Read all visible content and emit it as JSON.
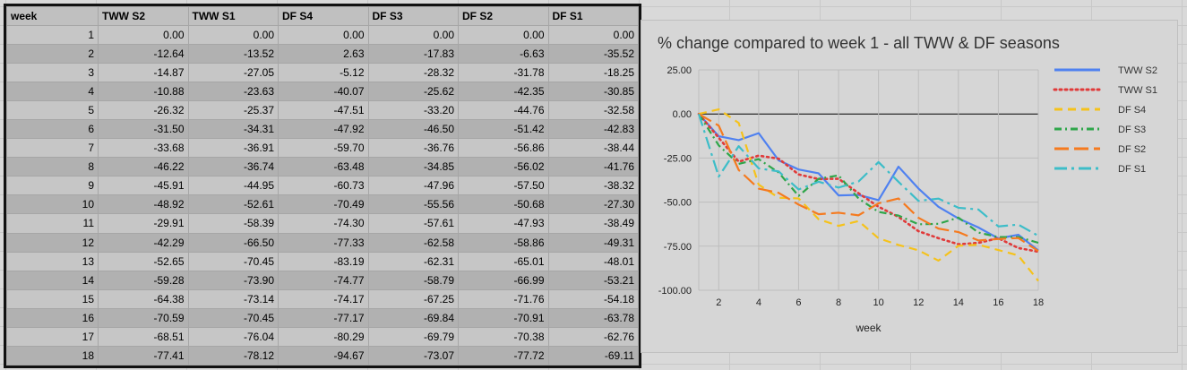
{
  "table": {
    "headers": [
      "week",
      "TWW S2",
      "TWW S1",
      "DF S4",
      "DF S3",
      "DF S2",
      "DF S1"
    ],
    "rows": [
      [
        "1",
        "0.00",
        "0.00",
        "0.00",
        "0.00",
        "0.00",
        "0.00"
      ],
      [
        "2",
        "-12.64",
        "-13.52",
        "2.63",
        "-17.83",
        "-6.63",
        "-35.52"
      ],
      [
        "3",
        "-14.87",
        "-27.05",
        "-5.12",
        "-28.32",
        "-31.78",
        "-18.25"
      ],
      [
        "4",
        "-10.88",
        "-23.63",
        "-40.07",
        "-25.62",
        "-42.35",
        "-30.85"
      ],
      [
        "5",
        "-26.32",
        "-25.37",
        "-47.51",
        "-33.20",
        "-44.76",
        "-32.58"
      ],
      [
        "6",
        "-31.50",
        "-34.31",
        "-47.92",
        "-46.50",
        "-51.42",
        "-42.83"
      ],
      [
        "7",
        "-33.68",
        "-36.91",
        "-59.70",
        "-36.76",
        "-56.86",
        "-38.44"
      ],
      [
        "8",
        "-46.22",
        "-36.74",
        "-63.48",
        "-34.85",
        "-56.02",
        "-41.76"
      ],
      [
        "9",
        "-45.91",
        "-44.95",
        "-60.73",
        "-47.96",
        "-57.50",
        "-38.32"
      ],
      [
        "10",
        "-48.92",
        "-52.61",
        "-70.49",
        "-55.56",
        "-50.68",
        "-27.30"
      ],
      [
        "11",
        "-29.91",
        "-58.39",
        "-74.30",
        "-57.61",
        "-47.93",
        "-38.49"
      ],
      [
        "12",
        "-42.29",
        "-66.50",
        "-77.33",
        "-62.58",
        "-58.86",
        "-49.31"
      ],
      [
        "13",
        "-52.65",
        "-70.45",
        "-83.19",
        "-62.31",
        "-65.01",
        "-48.01"
      ],
      [
        "14",
        "-59.28",
        "-73.90",
        "-74.77",
        "-58.79",
        "-66.99",
        "-53.21"
      ],
      [
        "15",
        "-64.38",
        "-73.14",
        "-74.17",
        "-67.25",
        "-71.76",
        "-54.18"
      ],
      [
        "16",
        "-70.59",
        "-70.45",
        "-77.17",
        "-69.84",
        "-70.91",
        "-63.78"
      ],
      [
        "17",
        "-68.51",
        "-76.04",
        "-80.29",
        "-69.79",
        "-70.38",
        "-62.76"
      ],
      [
        "18",
        "-77.41",
        "-78.12",
        "-94.67",
        "-73.07",
        "-77.72",
        "-69.11"
      ]
    ]
  },
  "chart_data": {
    "type": "line",
    "title": "% change compared to week 1 - all TWW & DF seasons",
    "xlabel": "week",
    "ylabel": "",
    "x": [
      1,
      2,
      3,
      4,
      5,
      6,
      7,
      8,
      9,
      10,
      11,
      12,
      13,
      14,
      15,
      16,
      17,
      18
    ],
    "xticks": [
      "2",
      "4",
      "6",
      "8",
      "10",
      "12",
      "14",
      "16",
      "18"
    ],
    "yticks": [
      "25.00",
      "0.00",
      "-25.00",
      "-50.00",
      "-75.00",
      "-100.00"
    ],
    "ylim": [
      -100,
      25
    ],
    "grid": true,
    "legend_position": "right",
    "series": [
      {
        "name": "TWW S2",
        "color": "#4f81f0",
        "dash": "solid",
        "values": [
          0,
          -12.64,
          -14.87,
          -10.88,
          -26.32,
          -31.5,
          -33.68,
          -46.22,
          -45.91,
          -48.92,
          -29.91,
          -42.29,
          -52.65,
          -59.28,
          -64.38,
          -70.59,
          -68.51,
          -77.41
        ]
      },
      {
        "name": "TWW S1",
        "color": "#e03a3a",
        "dash": "dotted",
        "values": [
          0,
          -13.52,
          -27.05,
          -23.63,
          -25.37,
          -34.31,
          -36.91,
          -36.74,
          -44.95,
          -52.61,
          -58.39,
          -66.5,
          -70.45,
          -73.9,
          -73.14,
          -70.45,
          -76.04,
          -78.12
        ]
      },
      {
        "name": "DF S4",
        "color": "#f5c21b",
        "dash": "dashed",
        "values": [
          0,
          2.63,
          -5.12,
          -40.07,
          -47.51,
          -47.92,
          -59.7,
          -63.48,
          -60.73,
          -70.49,
          -74.3,
          -77.33,
          -83.19,
          -74.77,
          -74.17,
          -77.17,
          -80.29,
          -94.67
        ]
      },
      {
        "name": "DF S3",
        "color": "#2fa64a",
        "dash": "dashdot",
        "values": [
          0,
          -17.83,
          -28.32,
          -25.62,
          -33.2,
          -46.5,
          -36.76,
          -34.85,
          -47.96,
          -55.56,
          -57.61,
          -62.58,
          -62.31,
          -58.79,
          -67.25,
          -69.84,
          -69.79,
          -73.07
        ]
      },
      {
        "name": "DF S2",
        "color": "#f57a1f",
        "dash": "longdash",
        "values": [
          0,
          -6.63,
          -31.78,
          -42.35,
          -44.76,
          -51.42,
          -56.86,
          -56.02,
          -57.5,
          -50.68,
          -47.93,
          -58.86,
          -65.01,
          -66.99,
          -71.76,
          -70.91,
          -70.38,
          -77.72
        ]
      },
      {
        "name": "DF S1",
        "color": "#3dbdc8",
        "dash": "longdashdot",
        "values": [
          0,
          -35.52,
          -18.25,
          -30.85,
          -32.58,
          -42.83,
          -38.44,
          -41.76,
          -38.32,
          -27.3,
          -38.49,
          -49.31,
          -48.01,
          -53.21,
          -54.18,
          -63.78,
          -62.76,
          -69.11
        ]
      }
    ]
  }
}
